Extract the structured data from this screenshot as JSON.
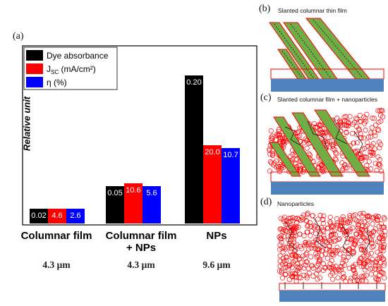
{
  "panel_a": {
    "letter": "(a)",
    "chart_data": {
      "type": "bar",
      "title": "",
      "xlabel": "",
      "ylabel": "Relative unit",
      "categories": [
        "Columnar film",
        "Columnar film\n+ NPs",
        "NPs"
      ],
      "category_lines": [
        [
          "Columnar film"
        ],
        [
          "Columnar film",
          "+ NPs"
        ],
        [
          "NPs"
        ]
      ],
      "thickness_labels": [
        "4.3 μm",
        "4.3 μm",
        "9.6 μm"
      ],
      "series": [
        {
          "name": "Dye absorbance",
          "color": "#000000",
          "values": [
            0.02,
            0.05,
            0.2
          ],
          "labels": [
            "0.02",
            "0.05",
            "0.20"
          ],
          "relative_heights": [
            0.1,
            0.25,
            1.0
          ]
        },
        {
          "name": "J_SC (mA/cm²)",
          "color": "#ff0000",
          "values": [
            4.6,
            10.6,
            20.0
          ],
          "labels": [
            "4.6",
            "10.6",
            "20.0"
          ],
          "relative_heights": [
            0.1,
            0.27,
            0.53
          ]
        },
        {
          "name": "η (%)",
          "color": "#0000ff",
          "values": [
            2.6,
            5.6,
            10.7
          ],
          "labels": [
            "2.6",
            "5.6",
            "10.7"
          ],
          "relative_heights": [
            0.1,
            0.25,
            0.51
          ]
        }
      ],
      "legend": {
        "placement": "top-left",
        "entries": [
          "Dye absorbance",
          "J",
          "SC",
          " (mA/cm²)",
          "η (%)"
        ]
      },
      "grid": false
    }
  },
  "panel_b": {
    "letter": "(b)",
    "title": "Slanted columnar thin film"
  },
  "panel_c": {
    "letter": "(c)",
    "title": "Slanted columnar film + nanoparticles"
  },
  "panel_d": {
    "letter": "(d)",
    "title": "Nanoparticles"
  },
  "colors": {
    "substrate": "#4f81bd",
    "film_outline": "#ff0000",
    "column_fill": "#70ad47",
    "particle": "#ff0000"
  }
}
